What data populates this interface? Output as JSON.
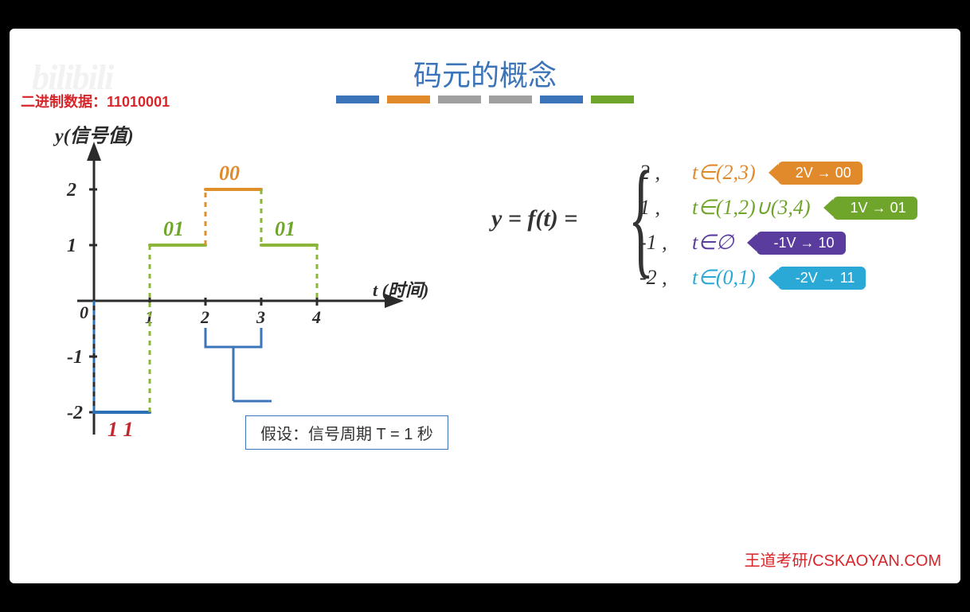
{
  "colors": {
    "blue": "#3b74b9",
    "orange": "#e08a2c",
    "gray": "#a0a0a0",
    "green": "#6fa52a",
    "purple": "#5a3b9e",
    "cyan": "#2aa8d6",
    "red": "#d8252a",
    "darkred": "#c1272d",
    "black": "#2b2b2b",
    "signal_blue": "#2b6fb5",
    "signal_green": "#8bb53b",
    "signal_orange": "#e0902a"
  },
  "title": {
    "text": "码元的概念",
    "color": "#3b74b9"
  },
  "accent": [
    "#3b74b9",
    "#e08a2c",
    "#a0a0a0",
    "#a0a0a0",
    "#3b74b9",
    "#6fa52a"
  ],
  "watermark": "bilibili",
  "binary": {
    "label": "二进制数据：",
    "value": "11010001",
    "color": "#d8252a"
  },
  "axes": {
    "y_label": "y(信号值)",
    "x_label": "t (时间)",
    "y_ticks": [
      "2",
      "1",
      "-1",
      "-2"
    ],
    "x_ticks": [
      "1",
      "2",
      "3",
      "4"
    ]
  },
  "segments": [
    {
      "t0": 0,
      "t1": 1,
      "y": -2,
      "color": "#2b6fb5",
      "label": "1 1",
      "label_color": "#c1272d",
      "label_y": "below"
    },
    {
      "t0": 1,
      "t1": 2,
      "y": 1,
      "color": "#8bb53b",
      "label": "01",
      "label_color": "#6fa52a",
      "label_y": "above"
    },
    {
      "t0": 2,
      "t1": 3,
      "y": 2,
      "color": "#e0902a",
      "label": "00",
      "label_color": "#e08a2c",
      "label_y": "above"
    },
    {
      "t0": 3,
      "t1": 4,
      "y": 1,
      "color": "#8bb53b",
      "label": "01",
      "label_color": "#6fa52a",
      "label_y": "above"
    }
  ],
  "callout": "假设：信号周期 T = 1 秒",
  "equation": {
    "lhs": "y = f(t) =",
    "cases": [
      {
        "val": "2 ,",
        "cond": "t∈(2,3)",
        "cond_color": "#e08a2c",
        "tag": "2V → 00",
        "tag_bg": "#e08a2c"
      },
      {
        "val": "1 ,",
        "cond": "t∈(1,2)∪(3,4)",
        "cond_color": "#6fa52a",
        "tag": "1V → 01",
        "tag_bg": "#6fa52a"
      },
      {
        "val": "-1 ,",
        "cond": "t∈∅",
        "cond_color": "#5a3b9e",
        "tag": "-1V → 10",
        "tag_bg": "#5a3b9e"
      },
      {
        "val": "-2 ,",
        "cond": "t∈(0,1)",
        "cond_color": "#2aa8d6",
        "tag": "-2V → 11",
        "tag_bg": "#2aa8d6"
      }
    ]
  },
  "footer": {
    "text": "王道考研/CSKAOYAN.COM",
    "color": "#d8252a"
  },
  "chart_geom": {
    "origin_x": 66,
    "origin_y": 230,
    "unit_x": 70,
    "unit_y": 70
  }
}
